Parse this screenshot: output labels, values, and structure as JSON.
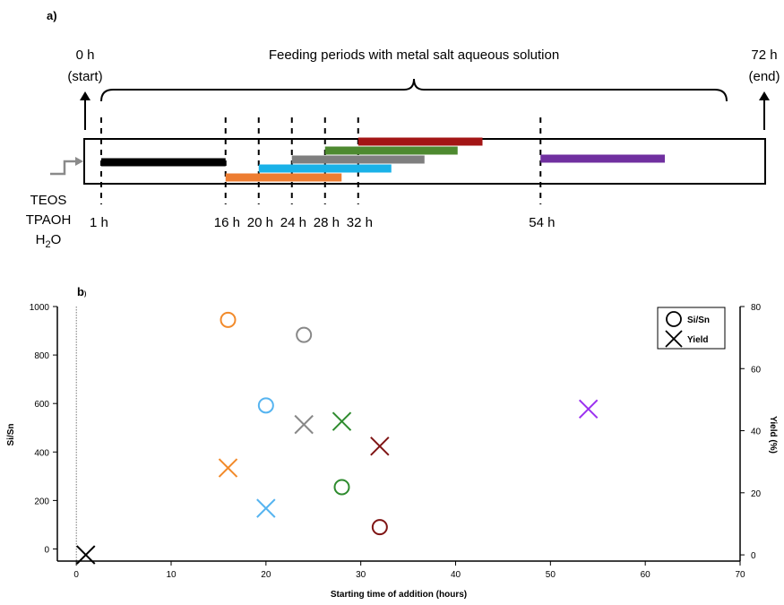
{
  "panel_a": {
    "label": "a)",
    "start_time": "0 h",
    "start_note": "(start)",
    "end_time": "72 h",
    "end_note": "(end)",
    "feeding_label": "Feeding periods with metal salt aqueous solution",
    "inputs": [
      "TEOS",
      "TPAOH"
    ],
    "water_main": "H",
    "water_sub": "2",
    "water_tail": "O",
    "markers": [
      {
        "label": "1 h",
        "hour": 1
      },
      {
        "label": "16 h",
        "hour": 16
      },
      {
        "label": "20 h",
        "hour": 20
      },
      {
        "label": "24 h",
        "hour": 24
      },
      {
        "label": "28 h",
        "hour": 28
      },
      {
        "label": "32 h",
        "hour": 32
      },
      {
        "label": "54 h",
        "hour": 54
      }
    ],
    "bars": [
      {
        "start": 1,
        "end": 16,
        "color": "#000000"
      },
      {
        "start": 16,
        "end": 30,
        "color": "#ed7d31"
      },
      {
        "start": 20,
        "end": 36,
        "color": "#1ab2e8"
      },
      {
        "start": 24,
        "end": 40,
        "color": "#7f7f7f"
      },
      {
        "start": 28,
        "end": 44,
        "color": "#4e8a30"
      },
      {
        "start": 32,
        "end": 47,
        "color": "#a31515"
      },
      {
        "start": 54,
        "end": 69,
        "color": "#7030a0"
      }
    ]
  },
  "chart_data": {
    "type": "scatter",
    "panel_label": "b",
    "panel_label_suffix": ")",
    "xlabel": "Starting time of addition (hours)",
    "ylabel": "Si/Sn",
    "y2label": "Yield (%)",
    "xlim": [
      -2,
      70
    ],
    "ylim": [
      -50,
      1000
    ],
    "y2lim": [
      -2,
      80
    ],
    "xticks": [
      0,
      10,
      20,
      30,
      40,
      50,
      60,
      70
    ],
    "yticks": [
      0,
      200,
      400,
      600,
      800,
      1000
    ],
    "y2ticks": [
      0,
      20,
      40,
      60,
      80
    ],
    "vline_x": 0,
    "legend": {
      "position": "top-right",
      "entries": [
        "Si/Sn",
        "Yield"
      ]
    },
    "series": [
      {
        "name": "Si/Sn",
        "marker": "circle",
        "axis": "left",
        "points": [
          {
            "x": 16,
            "y": 945,
            "color": "#f28a2a"
          },
          {
            "x": 20,
            "y": 592,
            "color": "#56b4f0"
          },
          {
            "x": 24,
            "y": 883,
            "color": "#888888"
          },
          {
            "x": 28,
            "y": 255,
            "color": "#2e8b2e"
          },
          {
            "x": 32,
            "y": 90,
            "color": "#7f1414"
          }
        ]
      },
      {
        "name": "Yield",
        "marker": "cross",
        "axis": "right",
        "points": [
          {
            "x": 1,
            "y": 0,
            "color": "#000000"
          },
          {
            "x": 16,
            "y": 28,
            "color": "#f28a2a"
          },
          {
            "x": 20,
            "y": 15,
            "color": "#56b4f0"
          },
          {
            "x": 24,
            "y": 42,
            "color": "#888888"
          },
          {
            "x": 28,
            "y": 43,
            "color": "#2e8b2e"
          },
          {
            "x": 32,
            "y": 35,
            "color": "#7f1414"
          },
          {
            "x": 54,
            "y": 47,
            "color": "#9b30f0"
          }
        ]
      }
    ]
  }
}
